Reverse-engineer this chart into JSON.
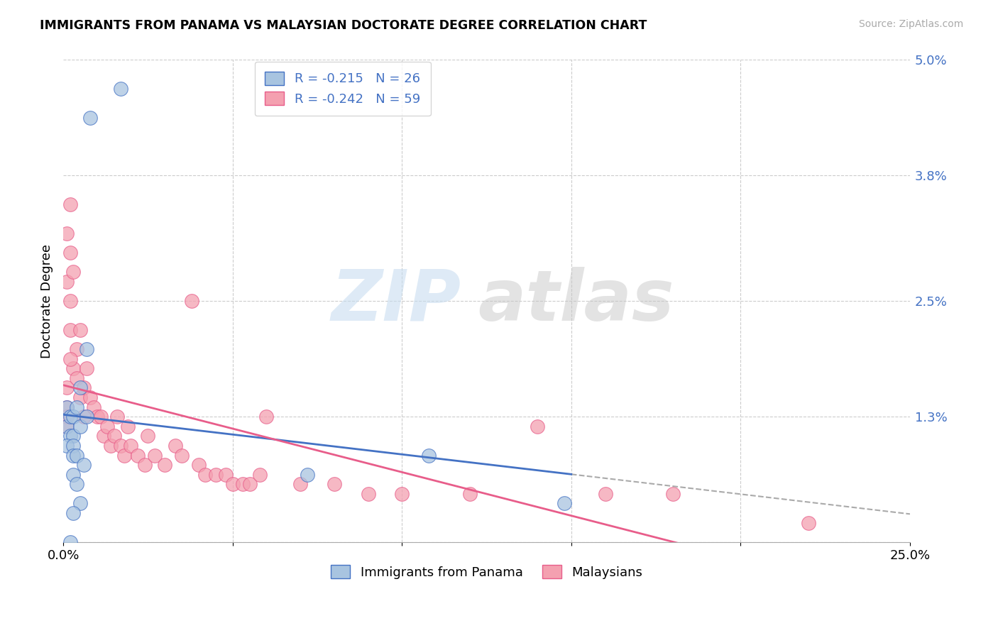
{
  "title": "IMMIGRANTS FROM PANAMA VS MALAYSIAN DOCTORATE DEGREE CORRELATION CHART",
  "source": "Source: ZipAtlas.com",
  "ylabel": "Doctorate Degree",
  "yticks": [
    0.0,
    0.013,
    0.025,
    0.038,
    0.05
  ],
  "ytick_labels": [
    "",
    "1.3%",
    "2.5%",
    "3.8%",
    "5.0%"
  ],
  "xlim": [
    0.0,
    0.25
  ],
  "ylim": [
    0.0,
    0.05
  ],
  "legend_r1": "R = -0.215   N = 26",
  "legend_r2": "R = -0.242   N = 59",
  "color_panama": "#a8c4e0",
  "color_malaysia": "#f4a0b0",
  "color_line_panama": "#4472c4",
  "color_line_malaysia": "#e85d8a",
  "watermark_zip": "ZIP",
  "watermark_atlas": "atlas",
  "panama_x": [
    0.008,
    0.017,
    0.001,
    0.001,
    0.002,
    0.003,
    0.004,
    0.002,
    0.003,
    0.001,
    0.005,
    0.005,
    0.007,
    0.007,
    0.003,
    0.003,
    0.004,
    0.006,
    0.003,
    0.004,
    0.108,
    0.148,
    0.072,
    0.005,
    0.003,
    0.002
  ],
  "panama_y": [
    0.044,
    0.047,
    0.014,
    0.012,
    0.013,
    0.013,
    0.014,
    0.011,
    0.011,
    0.01,
    0.016,
    0.012,
    0.02,
    0.013,
    0.01,
    0.009,
    0.009,
    0.008,
    0.007,
    0.006,
    0.009,
    0.004,
    0.007,
    0.004,
    0.003,
    0.0
  ],
  "malaysia_x": [
    0.001,
    0.002,
    0.001,
    0.002,
    0.002,
    0.003,
    0.002,
    0.004,
    0.003,
    0.001,
    0.001,
    0.001,
    0.001,
    0.002,
    0.004,
    0.005,
    0.005,
    0.006,
    0.007,
    0.006,
    0.008,
    0.009,
    0.01,
    0.011,
    0.012,
    0.013,
    0.014,
    0.015,
    0.016,
    0.017,
    0.018,
    0.019,
    0.02,
    0.022,
    0.024,
    0.025,
    0.027,
    0.03,
    0.033,
    0.035,
    0.038,
    0.04,
    0.042,
    0.045,
    0.048,
    0.05,
    0.053,
    0.055,
    0.058,
    0.06,
    0.07,
    0.08,
    0.09,
    0.1,
    0.12,
    0.14,
    0.16,
    0.18,
    0.22
  ],
  "malaysia_y": [
    0.032,
    0.035,
    0.027,
    0.025,
    0.03,
    0.028,
    0.022,
    0.02,
    0.018,
    0.014,
    0.013,
    0.012,
    0.016,
    0.019,
    0.017,
    0.015,
    0.022,
    0.016,
    0.018,
    0.013,
    0.015,
    0.014,
    0.013,
    0.013,
    0.011,
    0.012,
    0.01,
    0.011,
    0.013,
    0.01,
    0.009,
    0.012,
    0.01,
    0.009,
    0.008,
    0.011,
    0.009,
    0.008,
    0.01,
    0.009,
    0.025,
    0.008,
    0.007,
    0.007,
    0.007,
    0.006,
    0.006,
    0.006,
    0.007,
    0.013,
    0.006,
    0.006,
    0.005,
    0.005,
    0.005,
    0.012,
    0.005,
    0.005,
    0.002
  ],
  "bottom_legend_labels": [
    "Immigrants from Panama",
    "Malaysians"
  ]
}
